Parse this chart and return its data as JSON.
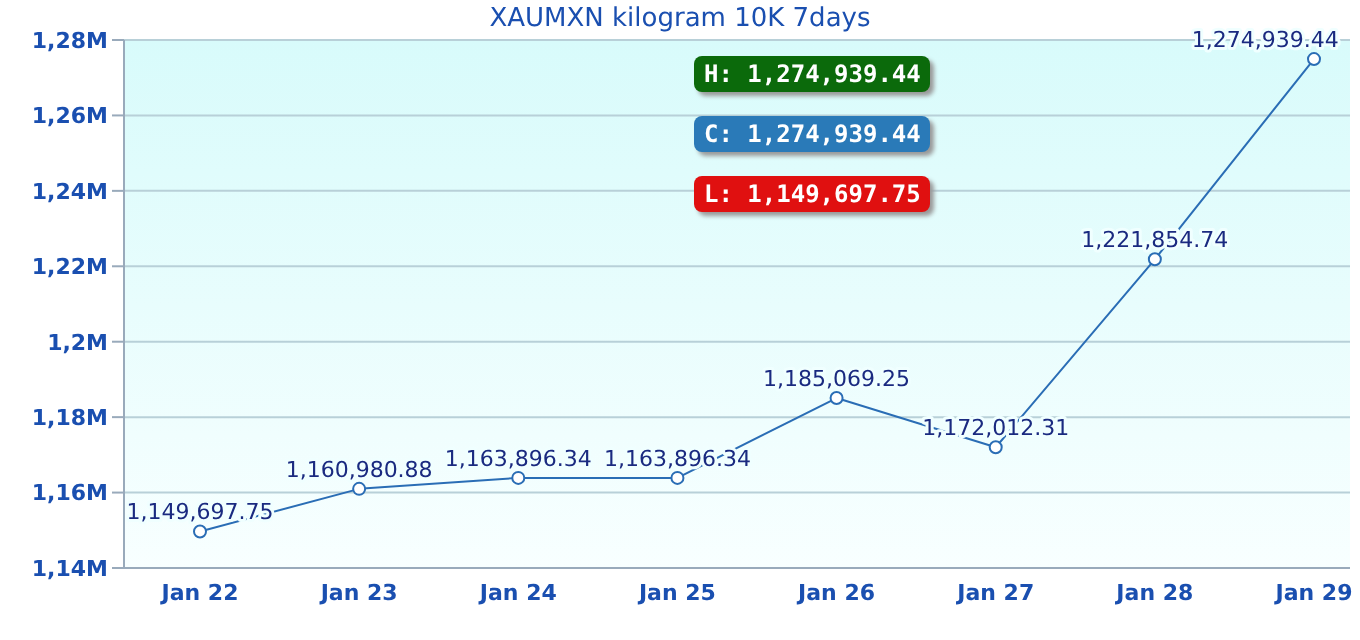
{
  "chart_data": {
    "type": "line",
    "title": "XAUMXN kilogram 10K 7days",
    "categories": [
      "Jan 22",
      "Jan 23",
      "Jan 24",
      "Jan 25",
      "Jan 26",
      "Jan 27",
      "Jan 28",
      "Jan 29"
    ],
    "series": [
      {
        "color": "#2a6db5",
        "values": [
          1149697.75,
          1160980.88,
          1163896.34,
          1163896.34,
          1185069.25,
          1172012.31,
          1221854.74,
          1274939.44
        ],
        "value_labels": [
          "1,149,697.75",
          "1,160,980.88",
          "1,163,896.34",
          "1,163,896.34",
          "1,185,069.25",
          "1,172,012.31",
          "1,221,854.74",
          "1,274,939.44"
        ]
      }
    ],
    "ylim": [
      1140000,
      1280000
    ],
    "yticks": [
      {
        "value": 1140000,
        "label": "1,14M"
      },
      {
        "value": 1160000,
        "label": "1,16M"
      },
      {
        "value": 1180000,
        "label": "1,18M"
      },
      {
        "value": 1200000,
        "label": "1,2M"
      },
      {
        "value": 1220000,
        "label": "1,22M"
      },
      {
        "value": 1240000,
        "label": "1,24M"
      },
      {
        "value": 1260000,
        "label": "1,26M"
      },
      {
        "value": 1280000,
        "label": "1,28M"
      }
    ],
    "grid": "y",
    "marker": "circle",
    "line_style": "solid",
    "annotations": [
      "H: 1,274,939.44",
      "C: 1,274,939.44",
      "L: 1,149,697.75"
    ]
  }
}
